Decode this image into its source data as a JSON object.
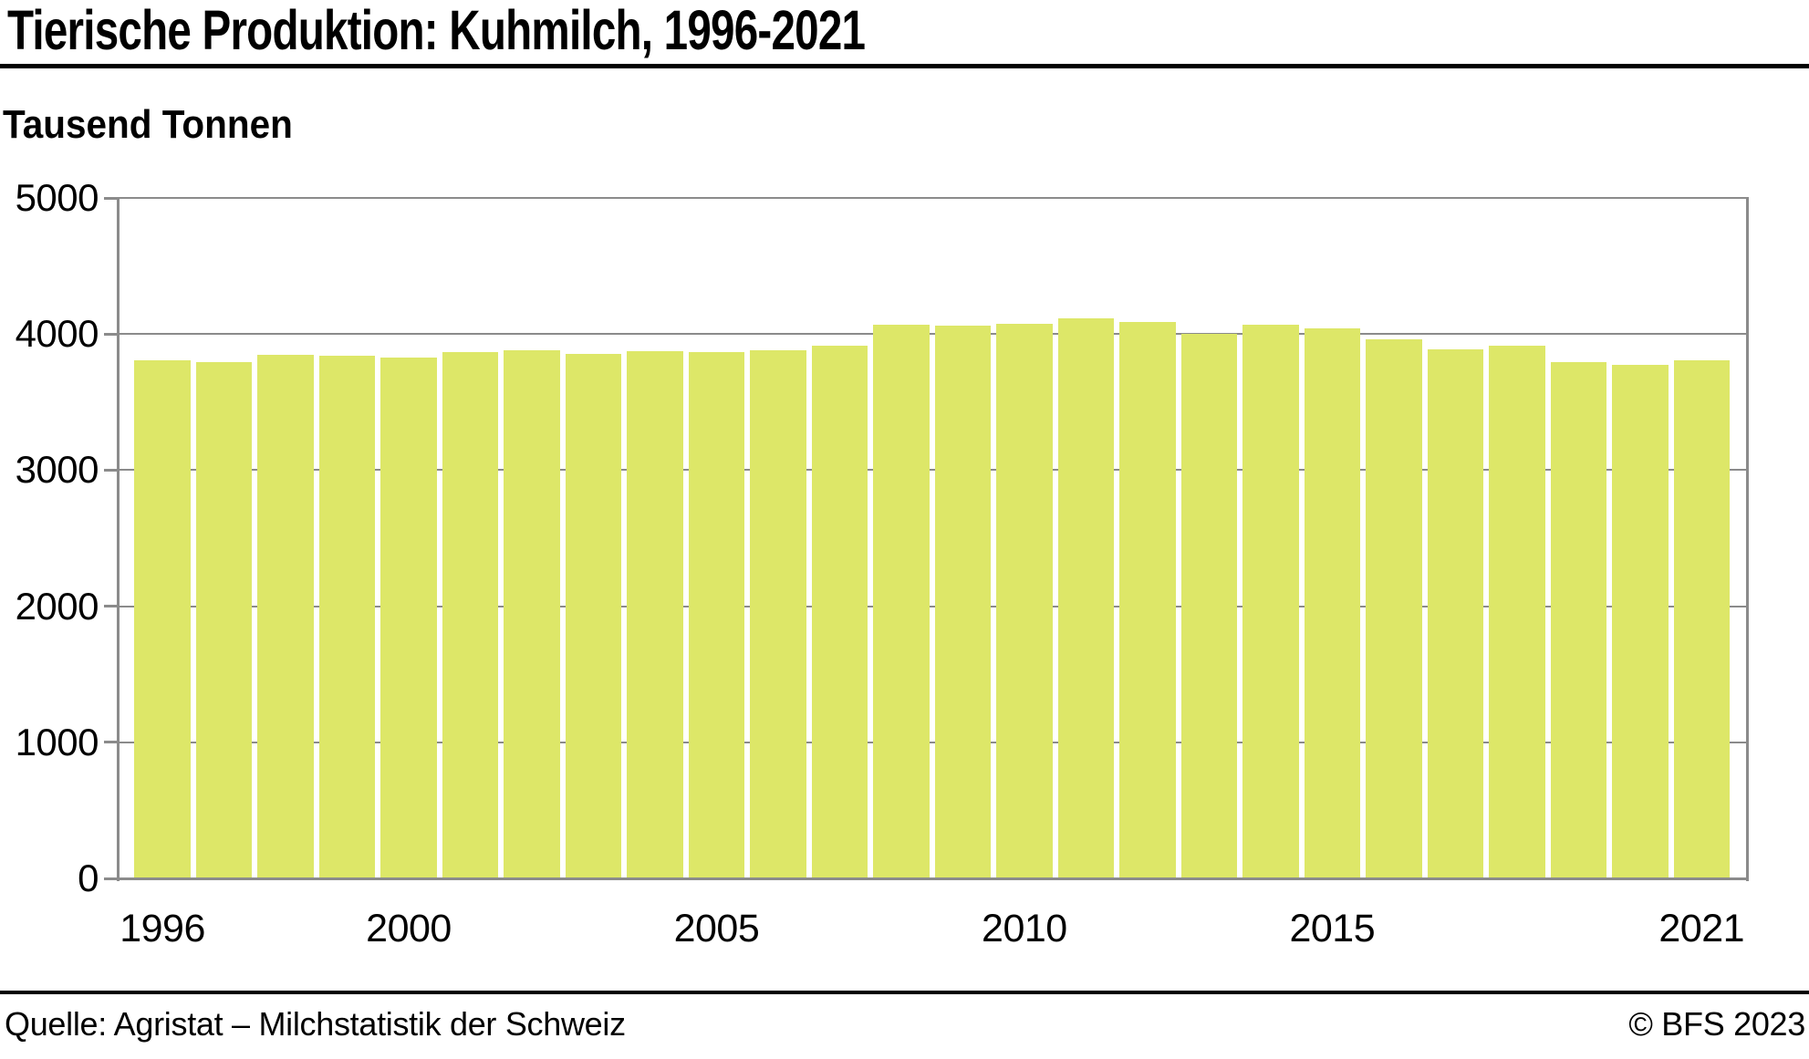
{
  "header": {
    "title": "Tierische Produktion: Kuhmilch, 1996-2021",
    "subtitle": "Tausend Tonnen"
  },
  "footer": {
    "source": "Quelle: Agristat – Milchstatistik der Schweiz",
    "copyright": "© BFS 2023"
  },
  "chart_data": {
    "type": "bar",
    "title": "Tierische Produktion: Kuhmilch, 1996-2021",
    "ylabel": "Tausend Tonnen",
    "xlabel": "",
    "categories": [
      1996,
      1997,
      1998,
      1999,
      2000,
      2001,
      2002,
      2003,
      2004,
      2005,
      2006,
      2007,
      2008,
      2009,
      2010,
      2011,
      2012,
      2013,
      2014,
      2015,
      2016,
      2017,
      2018,
      2019,
      2020,
      2021
    ],
    "values": [
      3805,
      3795,
      3850,
      3840,
      3828,
      3870,
      3882,
      3852,
      3872,
      3870,
      3880,
      3912,
      4068,
      4060,
      4078,
      4112,
      4086,
      3998,
      4066,
      4042,
      3960,
      3890,
      3912,
      3792,
      3773,
      3808
    ],
    "ylim": [
      0,
      5000
    ],
    "yticks": [
      0,
      1000,
      2000,
      3000,
      4000,
      5000
    ],
    "xticks": [
      1996,
      2000,
      2005,
      2010,
      2015,
      2021
    ],
    "grid": true,
    "legend_position": "none",
    "bar_color": "#dde768",
    "grid_color": "#8b8b8b",
    "axis_color": "#8b8b8b",
    "text_color": "#000000"
  }
}
